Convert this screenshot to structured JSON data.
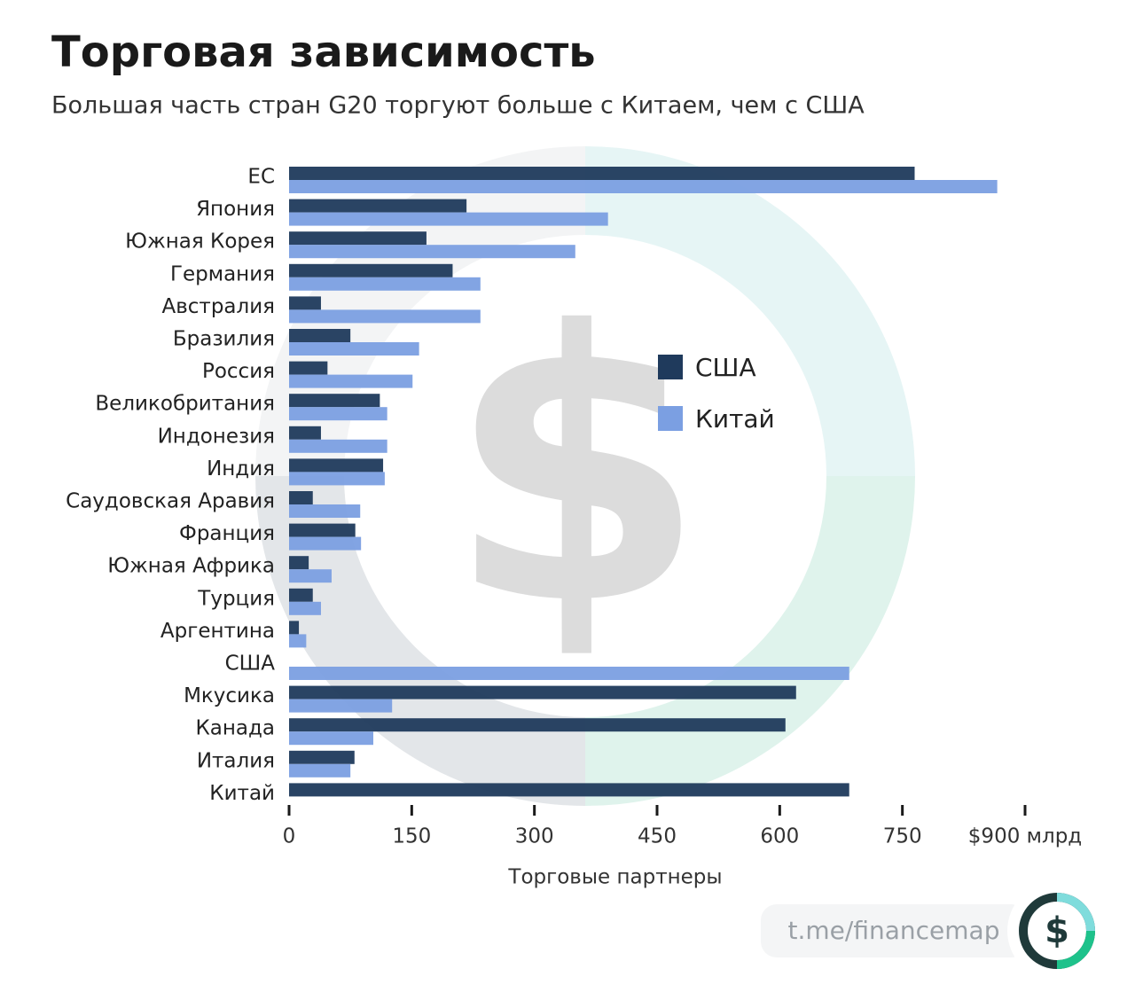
{
  "chart_data": {
    "type": "barh",
    "title": "Торговая зависимость",
    "subtitle": "Большая часть стран G20 торгуют больше с Китаем, чем с США",
    "x_label": "Торговые партнеры",
    "categories": [
      "ЕС",
      "Япония",
      "Южная Корея",
      "Германия",
      "Австралия",
      "Бразилия",
      "Россия",
      "Великобритания",
      "Индонезия",
      "Индия",
      "Саудовская Аравия",
      "Франция",
      "Южная Африка",
      "Турция",
      "Аргентина",
      "США",
      "Мкусика",
      "Канада",
      "Италия",
      "Китай"
    ],
    "series": [
      {
        "name": "США",
        "color": "#1f3a5c",
        "values": [
          765,
          217,
          168,
          200,
          39,
          75,
          47,
          111,
          39,
          115,
          29,
          81,
          24,
          29,
          12,
          null,
          620,
          607,
          80,
          685
        ]
      },
      {
        "name": "Китай",
        "color": "#7b9fe2",
        "values": [
          866,
          390,
          350,
          234,
          234,
          159,
          151,
          120,
          120,
          117,
          87,
          88,
          52,
          39,
          21,
          685,
          126,
          103,
          75,
          null
        ]
      }
    ],
    "xlim": [
      0,
      900
    ],
    "xticks": [
      0,
      150,
      300,
      450,
      600,
      750,
      {
        "value": 900,
        "label": "$900 млрд"
      }
    ],
    "legend": "center-right",
    "annotations": [
      "t.me/financemap",
      "$"
    ]
  }
}
